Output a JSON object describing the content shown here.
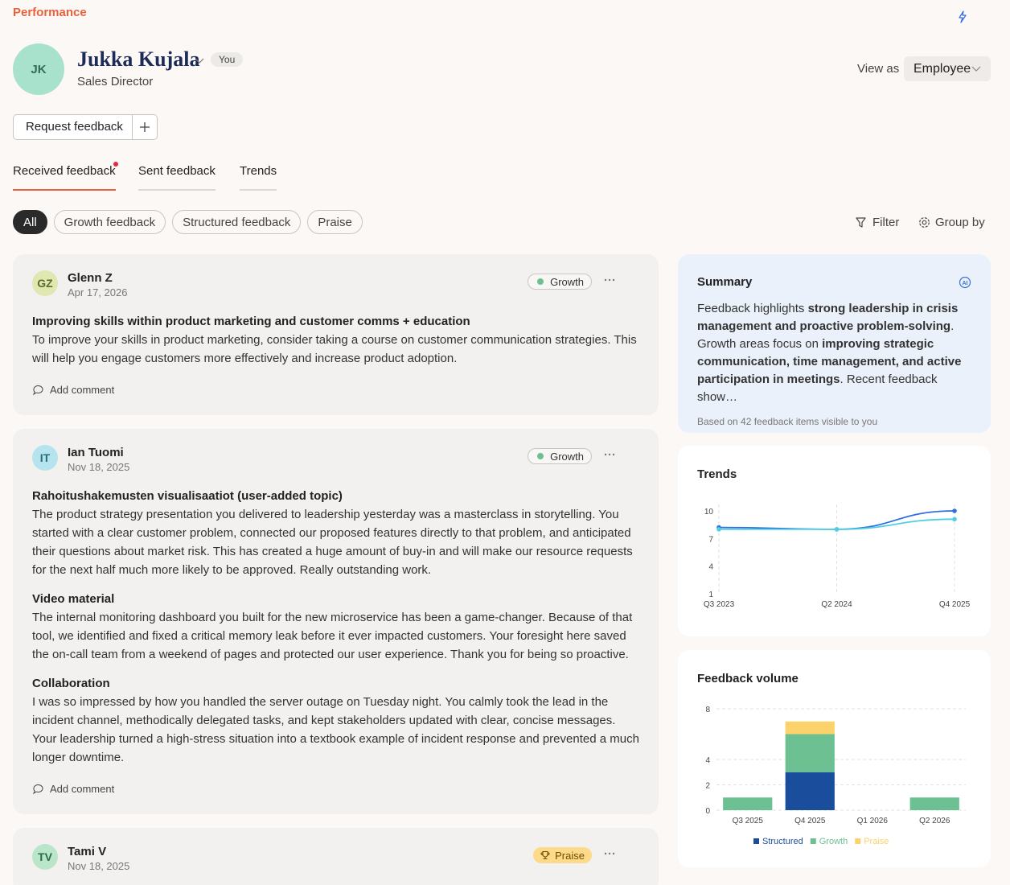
{
  "header": {
    "section": "Performance",
    "initials": "JK",
    "name": "Jukka Kujala",
    "badge": "You",
    "role": "Sales Director",
    "view_as_label": "View as",
    "view_as_value": "Employee",
    "request_button": "Request feedback"
  },
  "tabs": [
    "Received feedback",
    "Sent feedback",
    "Trends"
  ],
  "chips": [
    "All",
    "Growth feedback",
    "Structured feedback",
    "Praise"
  ],
  "toolbar": {
    "filter": "Filter",
    "group_by": "Group by"
  },
  "feedback": [
    {
      "initials": "GZ",
      "avatar_color": "#dfe8b0",
      "avatar_text_color": "#5a6b2b",
      "name": "Glenn Z",
      "date": "Apr 17, 2026",
      "tag": "Growth",
      "tag_color": "#6cc091",
      "tag_filled": false,
      "sections": [
        {
          "title": "Improving skills within product marketing and customer comms + education",
          "body": "To improve your skills in product marketing, consider taking a course on customer communication strategies. This will help you engage customers more effectively and increase product adoption."
        }
      ],
      "add_comment": "Add comment"
    },
    {
      "initials": "IT",
      "avatar_color": "#b5e3ee",
      "avatar_text_color": "#2b6b7a",
      "name": "Ian Tuomi",
      "date": "Nov 18, 2025",
      "tag": "Growth",
      "tag_color": "#6cc091",
      "tag_filled": false,
      "sections": [
        {
          "title": "Rahoitushakemusten visualisaatiot (user-added topic)",
          "body": "The product strategy presentation you delivered to leadership yesterday was a masterclass in storytelling. You started with a clear customer problem, connected our proposed features directly to that problem, and anticipated their questions about market risk. This has created a huge amount of buy-in and will make our resource requests for the next half much more likely to be approved. Really outstanding work."
        },
        {
          "title": "Video material",
          "body": "The internal monitoring dashboard you built for the new microservice has been a game-changer. Because of that tool, we identified and fixed a critical memory leak before it ever impacted customers. Your foresight here saved the on-call team from a weekend of pages and protected our user experience. Thank you for being so proactive."
        },
        {
          "title": "Collaboration",
          "body": "I was so impressed by how you handled the server outage on Tuesday night. You calmly took the lead in the incident channel, methodically delegated tasks, and kept stakeholders updated with clear, concise messages. Your leadership turned a high-stress situation into a textbook example of incident response and prevented a much longer downtime."
        }
      ],
      "add_comment": "Add comment"
    },
    {
      "initials": "TV",
      "avatar_color": "#b9e6c9",
      "avatar_text_color": "#2e6b45",
      "name": "Tami V",
      "date": "Nov 18, 2025",
      "tag": "Praise",
      "tag_color": "#fdd98a",
      "tag_filled": true,
      "sections": []
    }
  ],
  "summary": {
    "title": "Summary",
    "text": [
      {
        "text": "Feedback highlights ",
        "bold": false
      },
      {
        "text": "strong leadership in crisis management and proactive problem-solving",
        "bold": true
      },
      {
        "text": ". Growth areas focus on ",
        "bold": false
      },
      {
        "text": "improving strategic communication, time management, and active participation in meetings",
        "bold": true
      },
      {
        "text": ". Recent feedback show…",
        "bold": false
      }
    ],
    "footnote": "Based on 42 feedback items visible to you"
  },
  "chart_data": [
    {
      "type": "line",
      "title": "Trends",
      "categories": [
        "Q3 2023",
        "Q2 2024",
        "Q4 2025"
      ],
      "series": [
        {
          "color": "#2f6fe0",
          "values": [
            8.2,
            8,
            10
          ]
        },
        {
          "color": "#4fd0e0",
          "values": [
            8,
            8,
            9.1
          ]
        }
      ],
      "ylim": [
        1,
        10
      ],
      "yticks": [
        1,
        4,
        7,
        10
      ],
      "grid": false,
      "x_grid": true
    },
    {
      "type": "bar",
      "stacked": true,
      "title": "Feedback volume",
      "categories": [
        "Q3 2025",
        "Q4 2025",
        "Q1 2026",
        "Q2 2026"
      ],
      "series": [
        {
          "name": "Structured",
          "color": "#1a4d9c",
          "values": [
            0,
            3,
            0,
            0
          ]
        },
        {
          "name": "Growth",
          "color": "#6cc091",
          "values": [
            1,
            3,
            0,
            1
          ]
        },
        {
          "name": "Praise",
          "color": "#fcd36b",
          "values": [
            0,
            1,
            0,
            0
          ]
        }
      ],
      "ylim": [
        0,
        8
      ],
      "yticks": [
        0,
        2,
        4,
        8
      ],
      "grid": true,
      "legend": "bottom"
    }
  ]
}
